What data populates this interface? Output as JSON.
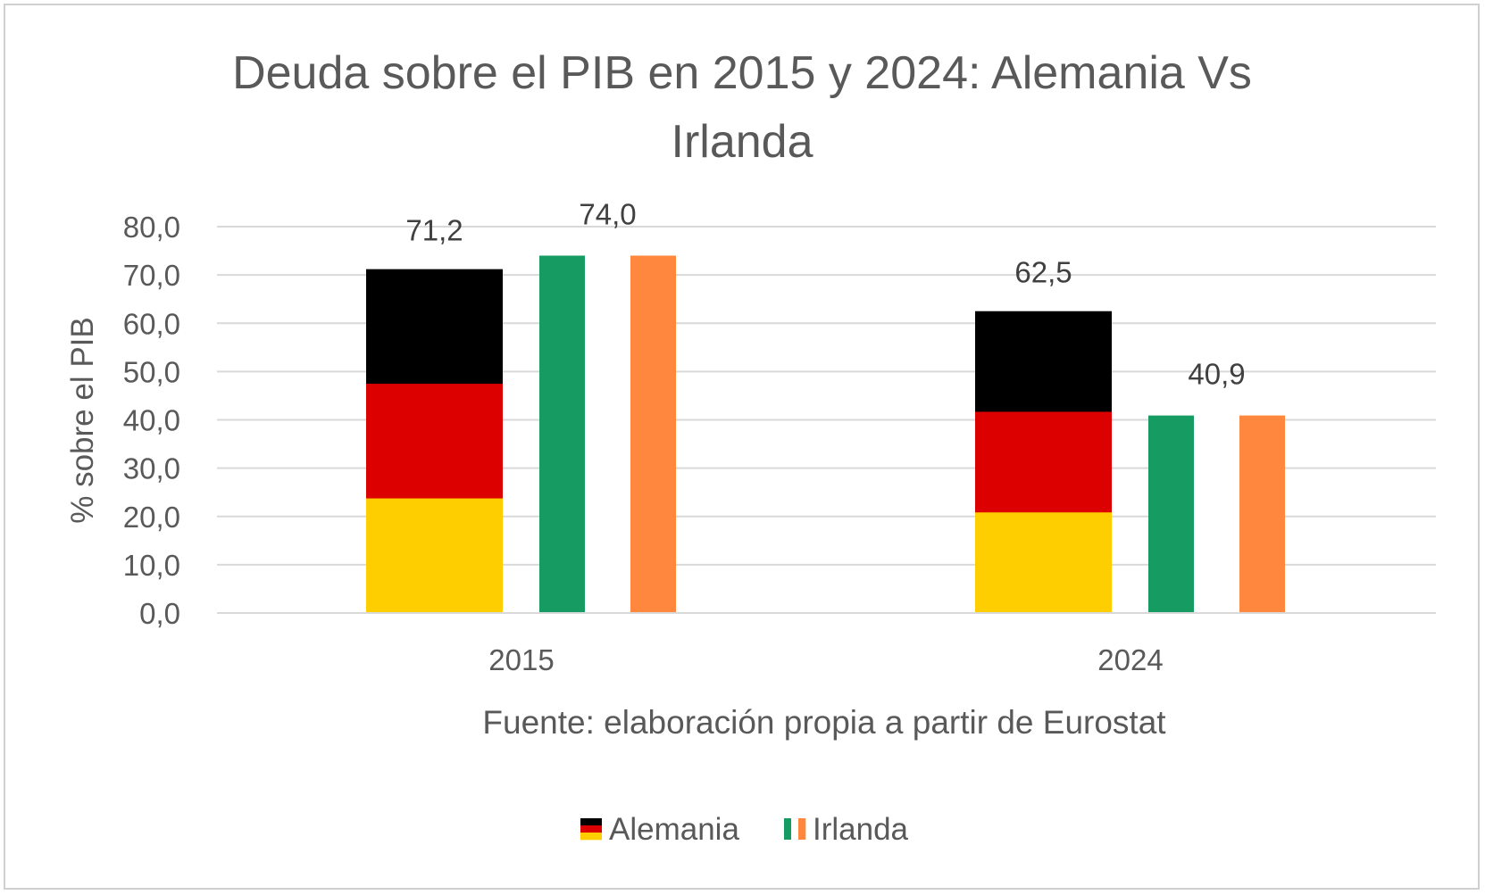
{
  "chart_data": {
    "type": "bar",
    "title": "Deuda sobre el PIB  en 2015 y 2024: Alemania Vs Irlanda",
    "title_lines": [
      "Deuda sobre el PIB  en 2015 y 2024: Alemania Vs",
      "Irlanda"
    ],
    "xlabel": "Fuente: elaboración propia a partir de Eurostat",
    "ylabel": "% sobre el PIB",
    "ylim": [
      0,
      80
    ],
    "yticks": [
      "0,0",
      "10,0",
      "20,0",
      "30,0",
      "40,0",
      "50,0",
      "60,0",
      "70,0",
      "80,0"
    ],
    "grid": true,
    "legend_position": "bottom",
    "categories": [
      "2015",
      "2024"
    ],
    "series": [
      {
        "name": "Alemania",
        "values": [
          71.2,
          62.5
        ],
        "labels": [
          "71,2",
          "62,5"
        ],
        "flag_colors": [
          "#000000",
          "#DD0000",
          "#FFCE00"
        ]
      },
      {
        "name": "Irlanda",
        "values": [
          74.0,
          40.9
        ],
        "labels": [
          "74,0",
          "40,9"
        ],
        "flag_colors": [
          "#169B62",
          "#FFFFFF",
          "#FF883E"
        ]
      }
    ]
  }
}
